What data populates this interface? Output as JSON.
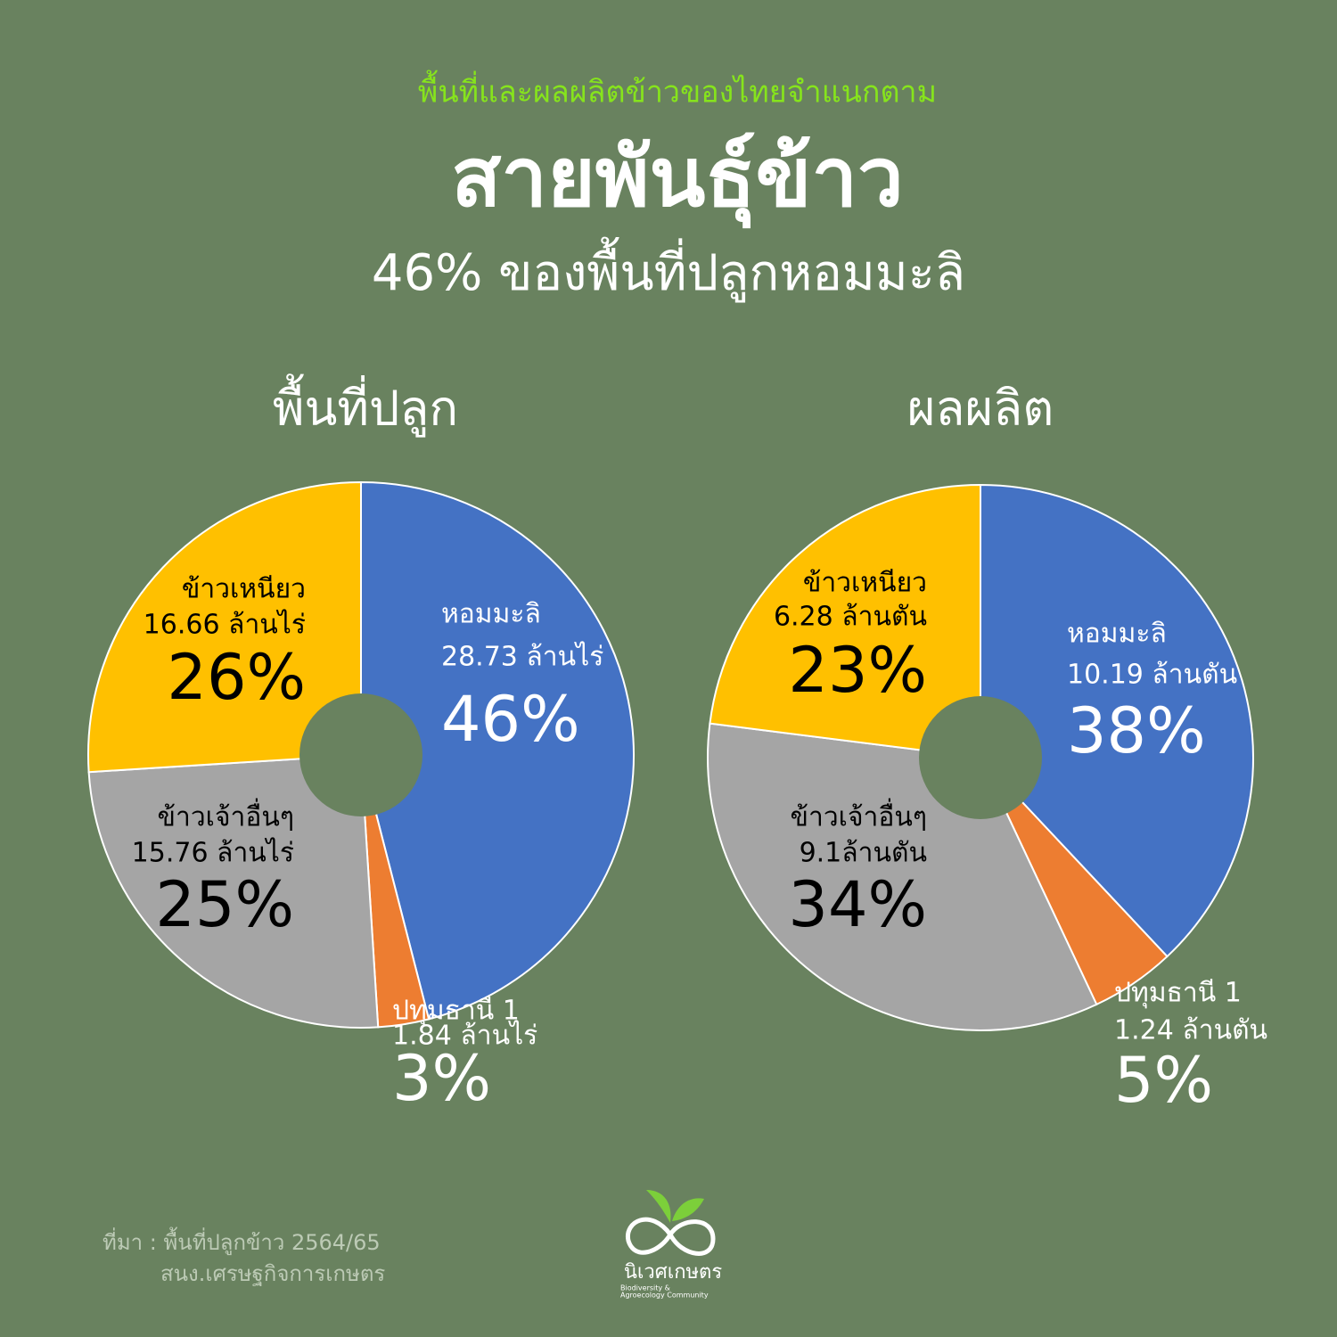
{
  "header": {
    "kicker": "พื้นที่และผลผลิตข้าวของไทยจำแนกตาม",
    "title": "สายพันธุ์ข้าว",
    "subtitle": "46% ของพื้นที่ปลูกหอมมะลิ"
  },
  "chart_data": [
    {
      "type": "pie",
      "title": "พื้นที่ปลูก",
      "categories": [
        "หอมมะลิ",
        "ปทุมธานี 1",
        "ข้าวเจ้าอื่นๆ",
        "ข้าวเหนียว"
      ],
      "details": [
        "28.73 ล้านไร่",
        "1.84 ล้านไร่",
        "15.76 ล้านไร่",
        "16.66 ล้านไร่"
      ],
      "values": [
        46,
        3,
        25,
        26
      ],
      "value_labels": [
        "46%",
        "3%",
        "25%",
        "26%"
      ],
      "colors": [
        "#4472c4",
        "#ed7d31",
        "#a5a5a5",
        "#ffc000"
      ]
    },
    {
      "type": "pie",
      "title": "ผลผลิต",
      "categories": [
        "หอมมะลิ",
        "ปทุมธานี 1",
        "ข้าวเจ้าอื่นๆ",
        "ข้าวเหนียว"
      ],
      "details": [
        "10.19 ล้านตัน",
        "1.24 ล้านตัน",
        "9.1ล้านตัน",
        "6.28 ล้านตัน"
      ],
      "values": [
        38,
        5,
        34,
        23
      ],
      "value_labels": [
        "38%",
        "5%",
        "34%",
        "23%"
      ],
      "colors": [
        "#4472c4",
        "#ed7d31",
        "#a5a5a5",
        "#ffc000"
      ]
    }
  ],
  "footer": {
    "source": [
      "ที่มา : พื้นที่ปลูกข้าว 2564/65",
      "สนง.เศรษฐกิจการเกษตร"
    ],
    "logo": {
      "name": "นิเวศเกษตร",
      "tagline": [
        "Biodiversity &",
        "Agroecology Community"
      ]
    }
  }
}
